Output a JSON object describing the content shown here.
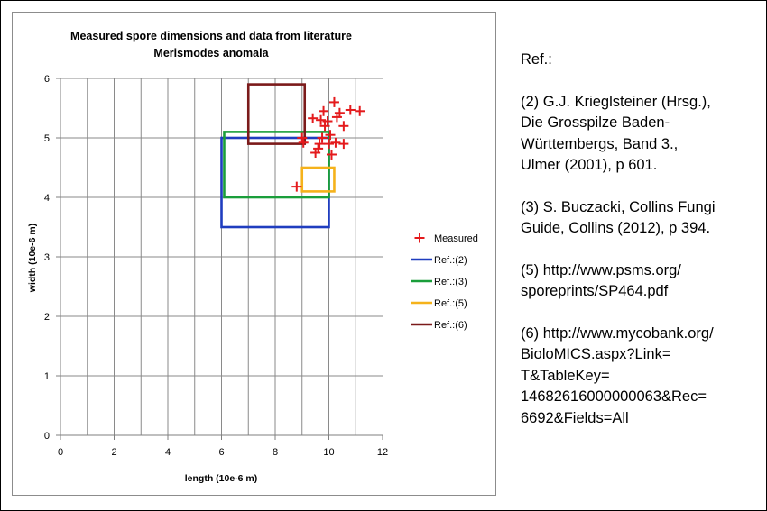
{
  "chart_data": {
    "type": "scatter",
    "title": "Measured spore dimensions and data from literature",
    "subtitle": "Merismodes anomala",
    "xlabel": "length (10e-6 m)",
    "ylabel": "width (10e-6 m)",
    "xlim": [
      0,
      12
    ],
    "ylim": [
      0,
      6
    ],
    "xticks": [
      0,
      2,
      4,
      6,
      8,
      10,
      12
    ],
    "yticks": [
      0,
      1,
      2,
      3,
      4,
      5,
      6
    ],
    "x_gridline_step": 1,
    "grid": true,
    "legend_position": "right",
    "series": [
      {
        "name": "Measured",
        "kind": "points",
        "marker": "plus",
        "color": "#e41a1c",
        "points": [
          {
            "x": 8.8,
            "y": 4.18
          },
          {
            "x": 9.0,
            "y": 5.0
          },
          {
            "x": 9.05,
            "y": 4.92
          },
          {
            "x": 9.4,
            "y": 5.33
          },
          {
            "x": 9.5,
            "y": 4.75
          },
          {
            "x": 9.6,
            "y": 4.82
          },
          {
            "x": 9.65,
            "y": 4.9
          },
          {
            "x": 9.7,
            "y": 5.3
          },
          {
            "x": 9.75,
            "y": 5.0
          },
          {
            "x": 9.8,
            "y": 5.45
          },
          {
            "x": 9.85,
            "y": 5.2
          },
          {
            "x": 9.95,
            "y": 5.28
          },
          {
            "x": 10.0,
            "y": 4.9
          },
          {
            "x": 10.05,
            "y": 5.05
          },
          {
            "x": 10.1,
            "y": 4.72
          },
          {
            "x": 10.2,
            "y": 5.6
          },
          {
            "x": 10.25,
            "y": 4.92
          },
          {
            "x": 10.3,
            "y": 5.35
          },
          {
            "x": 10.4,
            "y": 5.42
          },
          {
            "x": 10.55,
            "y": 5.2
          },
          {
            "x": 10.55,
            "y": 4.9
          },
          {
            "x": 10.8,
            "y": 5.47
          },
          {
            "x": 11.15,
            "y": 5.45
          }
        ]
      },
      {
        "name": "Ref.:(2)",
        "kind": "rect",
        "color": "#1f3dbf",
        "x": [
          6.0,
          10.0
        ],
        "y": [
          3.5,
          5.0
        ]
      },
      {
        "name": "Ref.:(3)",
        "kind": "rect",
        "color": "#1a9e3a",
        "x": [
          6.1,
          10.0
        ],
        "y": [
          4.0,
          5.1
        ]
      },
      {
        "name": "Ref.:(5)",
        "kind": "rect",
        "color": "#f5b21b",
        "x": [
          9.0,
          10.2
        ],
        "y": [
          4.1,
          4.5
        ]
      },
      {
        "name": "Ref.:(6)",
        "kind": "rect",
        "color": "#7b1a1a",
        "x": [
          7.0,
          9.1
        ],
        "y": [
          4.9,
          5.9
        ]
      }
    ]
  },
  "references": {
    "heading": "Ref.:",
    "items": [
      "(2) G.J. Krieglsteiner (Hrsg.),\nDie Grosspilze Baden-\nWürttembergs, Band 3.,\nUlmer (2001), p 601.",
      "(3) S. Buczacki, Collins Fungi\nGuide, Collins (2012), p 394.",
      "(5) http://www.psms.org/\nsporeprints/SP464.pdf",
      "(6) http://www.mycobank.org/\nBioloMICS.aspx?Link=\nT&TableKey=\n14682616000000063&Rec=\n6692&Fields=All"
    ]
  }
}
